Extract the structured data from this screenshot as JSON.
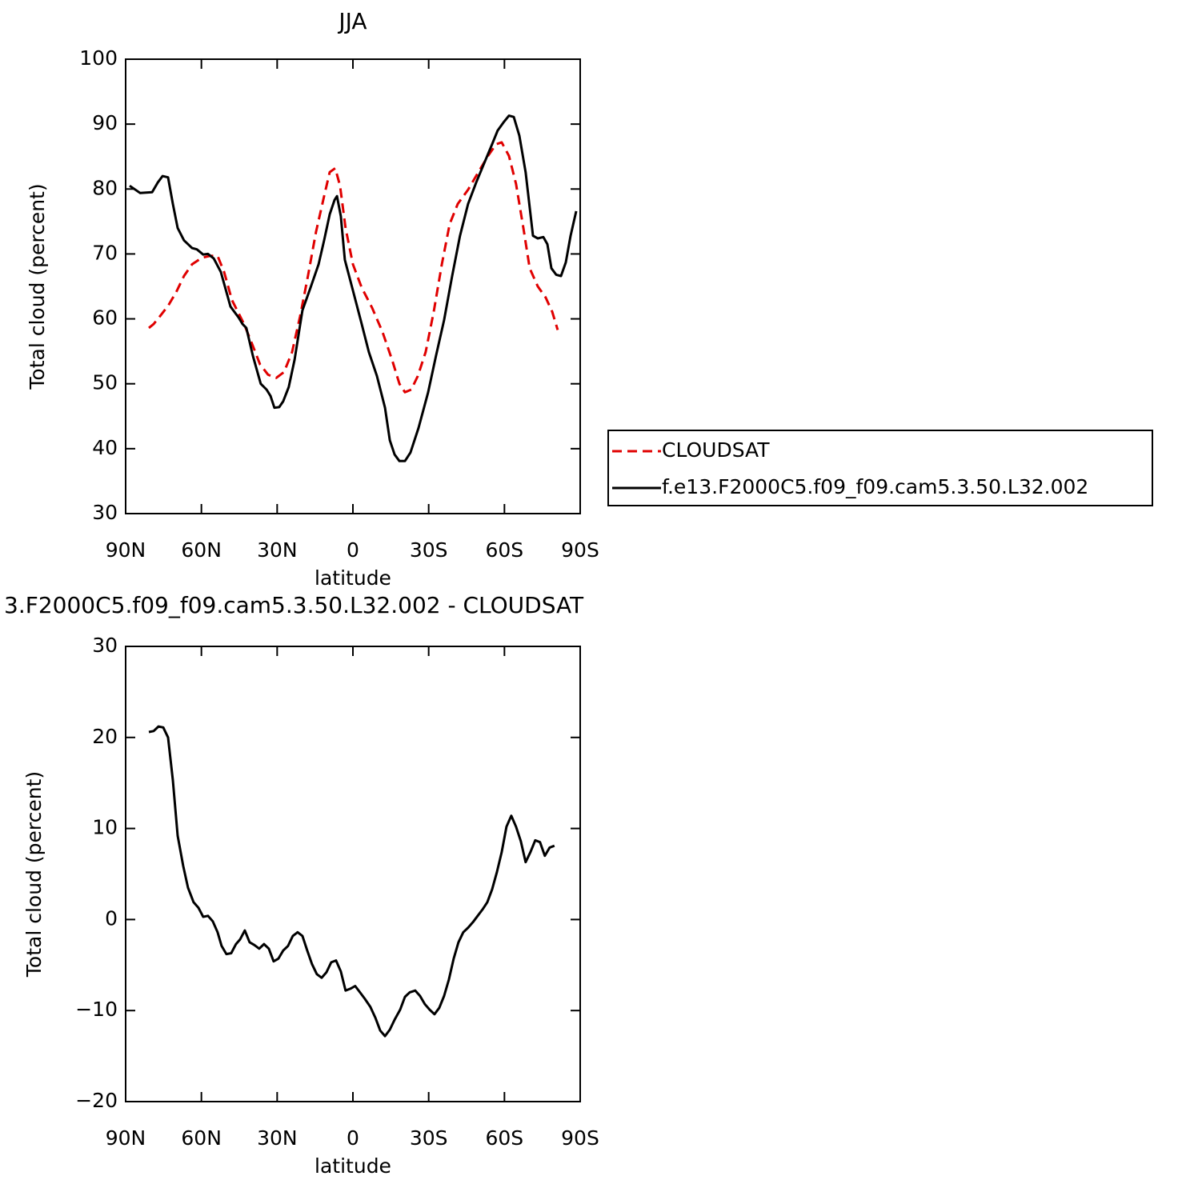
{
  "chart_data": [
    {
      "type": "line",
      "title": "JJA",
      "xlabel": "latitude",
      "ylabel": "Total cloud (percent)",
      "xlim": [
        90,
        -90
      ],
      "ylim": [
        30,
        100
      ],
      "xticks": [
        {
          "value": 90,
          "label": "90N"
        },
        {
          "value": 60,
          "label": "60N"
        },
        {
          "value": 30,
          "label": "30N"
        },
        0,
        {
          "value": -30,
          "label": "30S"
        },
        {
          "value": -60,
          "label": "60S"
        },
        {
          "value": -90,
          "label": "90S"
        }
      ],
      "yticks": [
        30,
        40,
        50,
        60,
        70,
        80,
        90,
        100
      ],
      "series": [
        {
          "name": "CLOUDSAT",
          "color": "#e00000",
          "style": "dashed",
          "x": [
            80.8,
            78.9,
            76.4,
            73.2,
            70.0,
            66.9,
            63.7,
            59.9,
            56.7,
            53.6,
            51.0,
            47.9,
            43.1,
            39.9,
            36.8,
            33.6,
            30.4,
            27.3,
            24.1,
            20.9,
            17.8,
            14.6,
            11.4,
            9.2,
            7.0,
            5.1,
            2.9,
            0.0,
            -3.5,
            -7.6,
            -11.7,
            -15.5,
            -18.4,
            -20.6,
            -23.1,
            -25.7,
            -28.8,
            -32.0,
            -35.2,
            -38.3,
            -41.5,
            -45.6,
            -49.7,
            -53.5,
            -56.7,
            -58.9,
            -61.8,
            -64.6,
            -67.5,
            -70.0,
            -73.2,
            -76.3,
            -78.9,
            -81.1
          ],
          "values": [
            58.6,
            59.2,
            60.4,
            62.0,
            64.1,
            66.6,
            68.4,
            69.4,
            69.7,
            69.7,
            67.2,
            62.9,
            59.2,
            56.1,
            53.0,
            51.4,
            50.9,
            51.8,
            54.9,
            60.4,
            66.6,
            73.4,
            78.9,
            82.6,
            83.2,
            80.5,
            74.0,
            68.4,
            64.8,
            61.7,
            58.0,
            53.7,
            50.0,
            48.7,
            49.1,
            51.2,
            54.9,
            61.1,
            68.4,
            74.6,
            77.7,
            79.9,
            82.6,
            85.1,
            86.9,
            87.2,
            85.1,
            80.8,
            74.0,
            67.8,
            65.0,
            63.3,
            61.1,
            58.3
          ]
        },
        {
          "name": "f.e13.F2000C5.f09_f09.cam5.3.50.L32.002",
          "color": "#000000",
          "style": "solid",
          "x": [
            88.4,
            84.3,
            79.5,
            77.3,
            75.4,
            73.2,
            71.3,
            69.4,
            66.9,
            63.7,
            61.8,
            59.3,
            57.4,
            55.1,
            52.3,
            48.5,
            45.3,
            43.7,
            42.2,
            39.6,
            36.5,
            34.2,
            32.6,
            31.1,
            29.2,
            27.6,
            25.4,
            23.1,
            20.0,
            16.8,
            13.6,
            11.4,
            9.2,
            7.3,
            6.3,
            4.8,
            3.2,
            0.3,
            -3.5,
            -6.3,
            -9.5,
            -12.7,
            -14.6,
            -16.5,
            -18.4,
            -20.6,
            -22.8,
            -26.0,
            -29.8,
            -32.9,
            -36.1,
            -39.3,
            -42.4,
            -45.6,
            -48.8,
            -51.9,
            -55.1,
            -57.3,
            -59.9,
            -61.8,
            -63.7,
            -65.9,
            -68.4,
            -71.3,
            -73.2,
            -75.4,
            -77.0,
            -78.6,
            -80.5,
            -82.4,
            -84.3,
            -86.2,
            -88.4
          ],
          "values": [
            80.5,
            79.4,
            79.5,
            81.0,
            82.0,
            81.8,
            77.7,
            74.0,
            72.1,
            70.9,
            70.7,
            69.9,
            70.0,
            69.3,
            67.2,
            61.9,
            60.2,
            59.2,
            58.6,
            54.3,
            50.0,
            49.1,
            48.1,
            46.3,
            46.4,
            47.3,
            49.5,
            53.7,
            61.3,
            64.8,
            68.4,
            72.1,
            76.1,
            78.3,
            78.9,
            75.8,
            69.1,
            64.8,
            59.2,
            54.9,
            51.2,
            46.3,
            41.3,
            39.1,
            38.1,
            38.1,
            39.4,
            43.2,
            48.7,
            54.3,
            59.8,
            66.6,
            72.8,
            77.7,
            81.0,
            83.9,
            86.9,
            89.0,
            90.4,
            91.3,
            91.1,
            88.2,
            82.6,
            72.8,
            72.4,
            72.6,
            71.5,
            67.8,
            66.8,
            66.6,
            68.7,
            72.8,
            76.6
          ]
        }
      ]
    },
    {
      "type": "line",
      "title": "3.F2000C5.f09_f09.cam5.3.50.L32.002 - CLOUDSAT",
      "xlabel": "latitude",
      "ylabel": "Total cloud (percent)",
      "xlim": [
        90,
        -90
      ],
      "ylim": [
        -20,
        30
      ],
      "xticks": [
        {
          "value": 90,
          "label": "90N"
        },
        {
          "value": 60,
          "label": "60N"
        },
        {
          "value": 30,
          "label": "30N"
        },
        0,
        {
          "value": -30,
          "label": "30S"
        },
        {
          "value": -60,
          "label": "60S"
        },
        {
          "value": -90,
          "label": "90S"
        }
      ],
      "yticks": [
        {
          "value": -20,
          "label": "−20"
        },
        {
          "value": -10,
          "label": "−10"
        },
        0,
        10,
        20,
        30
      ],
      "series": [
        {
          "color": "#000000",
          "style": "solid",
          "x": [
            80.8,
            78.9,
            77.0,
            75.1,
            73.2,
            71.3,
            69.4,
            67.2,
            65.3,
            63.1,
            61.2,
            59.3,
            57.4,
            55.5,
            53.6,
            52.0,
            50.1,
            48.2,
            46.3,
            44.7,
            42.8,
            40.9,
            39.0,
            37.1,
            35.2,
            33.3,
            31.4,
            29.5,
            27.6,
            25.7,
            23.8,
            21.9,
            20.0,
            18.1,
            16.2,
            14.3,
            12.4,
            10.5,
            8.6,
            6.7,
            4.8,
            2.9,
            1.0,
            -0.9,
            -2.8,
            -4.7,
            -6.9,
            -8.9,
            -10.8,
            -12.7,
            -14.6,
            -16.5,
            -18.7,
            -20.6,
            -22.5,
            -24.7,
            -26.6,
            -28.5,
            -30.4,
            -32.3,
            -34.2,
            -36.1,
            -38.0,
            -39.9,
            -41.8,
            -43.7,
            -45.6,
            -47.5,
            -49.4,
            -51.3,
            -53.2,
            -55.1,
            -57.0,
            -58.9,
            -60.8,
            -62.7,
            -64.6,
            -66.5,
            -68.4,
            -70.3,
            -72.2,
            -74.1,
            -76.0,
            -77.9,
            -79.8
          ],
          "values": [
            20.6,
            20.7,
            21.2,
            21.1,
            20.0,
            15.3,
            9.2,
            5.9,
            3.5,
            1.9,
            1.3,
            0.3,
            0.4,
            -0.2,
            -1.4,
            -2.9,
            -3.8,
            -3.7,
            -2.7,
            -2.2,
            -1.2,
            -2.5,
            -2.8,
            -3.2,
            -2.7,
            -3.2,
            -4.6,
            -4.3,
            -3.4,
            -2.9,
            -1.8,
            -1.4,
            -1.8,
            -3.4,
            -4.9,
            -6.0,
            -6.4,
            -5.8,
            -4.7,
            -4.5,
            -5.7,
            -7.8,
            -7.6,
            -7.3,
            -8.0,
            -8.7,
            -9.6,
            -10.8,
            -12.2,
            -12.8,
            -12.1,
            -11.0,
            -9.9,
            -8.5,
            -8.0,
            -7.8,
            -8.4,
            -9.3,
            -9.9,
            -10.4,
            -9.7,
            -8.4,
            -6.6,
            -4.3,
            -2.5,
            -1.4,
            -0.9,
            -0.3,
            0.4,
            1.1,
            1.9,
            3.3,
            5.2,
            7.4,
            10.2,
            11.4,
            10.2,
            8.6,
            6.3,
            7.4,
            8.7,
            8.5,
            7.0,
            7.9,
            8.1
          ]
        }
      ]
    }
  ]
}
